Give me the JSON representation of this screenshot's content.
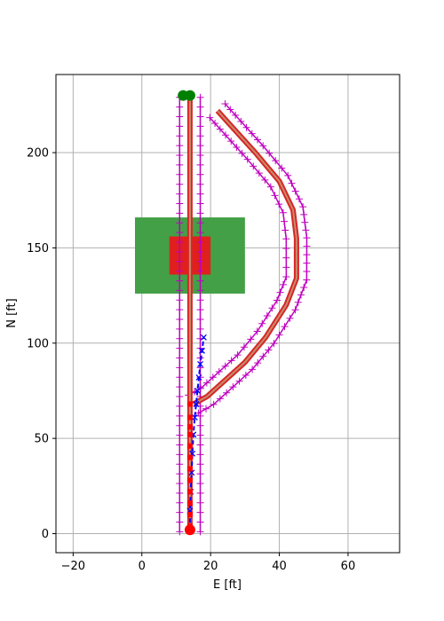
{
  "chart_data": {
    "type": "line",
    "xlabel": "E [ft]",
    "ylabel": "N [ft]",
    "xlim": [
      -25,
      75
    ],
    "ylim": [
      -10,
      241
    ],
    "xticks": [
      -20,
      0,
      20,
      40,
      60
    ],
    "yticks": [
      0,
      50,
      100,
      150,
      200
    ],
    "grid": true,
    "colors": {
      "grid": "#b0b0b0",
      "zone_outer": "#43a047",
      "zone_inner": "#e0201c",
      "path": "#d62728",
      "path_core": "#ff7f0e",
      "bounds": "#bf00bf",
      "trajectory": "#0000ff",
      "waypoints": "#ff0000",
      "start_end": "#008000"
    },
    "zones": [
      {
        "x0": -2,
        "x1": 30,
        "y0": 126,
        "y1": 166,
        "kind": "outer"
      },
      {
        "x0": 8,
        "x1": 20,
        "y0": 136,
        "y1": 156,
        "kind": "inner"
      }
    ],
    "route_vertical": {
      "x": [
        14,
        14
      ],
      "y": [
        2,
        229
      ]
    },
    "route_branch": {
      "x": [
        15,
        19,
        30,
        36,
        42,
        45,
        45,
        44,
        40,
        33,
        25,
        22
      ],
      "y": [
        68,
        72,
        90,
        103,
        120,
        134,
        155,
        170,
        185,
        200,
        216,
        222
      ]
    },
    "bounds_vertical": [
      {
        "x": [
          11,
          11
        ],
        "y": [
          1,
          229
        ]
      },
      {
        "x": [
          17,
          17
        ],
        "y": [
          1,
          229
        ]
      }
    ],
    "bounds_branch_offset": 3,
    "trajectory": {
      "x": [
        14,
        14,
        14.2,
        14.5,
        14.7,
        15,
        15.4,
        15.8,
        16.2,
        16.6,
        17,
        17.5,
        18
      ],
      "y": [
        2,
        12,
        22,
        32,
        42,
        52,
        61,
        68,
        75,
        82,
        89,
        96,
        103
      ]
    },
    "waypoints": {
      "x": [
        14,
        14,
        14,
        14,
        14,
        14,
        14,
        14,
        14,
        14,
        14,
        14
      ],
      "y": [
        4,
        10,
        16,
        22,
        28,
        34,
        40,
        46,
        52,
        56,
        61,
        68
      ]
    },
    "start_point": {
      "x": 14,
      "y": 2
    },
    "end_points": {
      "x": [
        12,
        14
      ],
      "y": [
        230,
        230
      ]
    }
  }
}
